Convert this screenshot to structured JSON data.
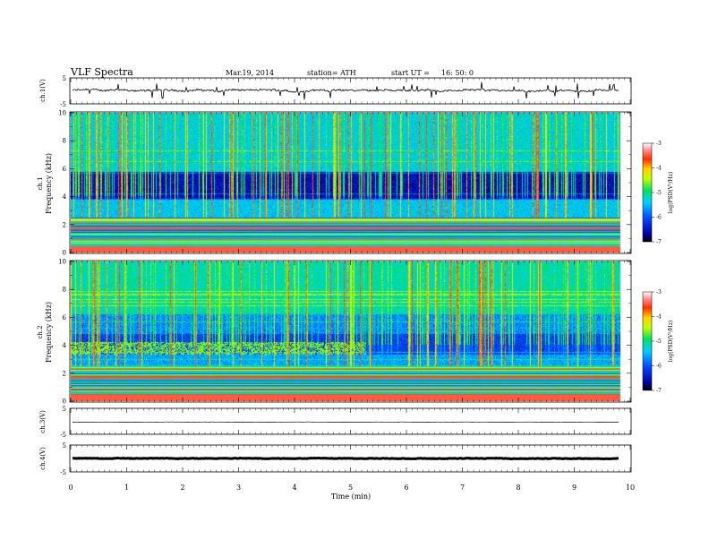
{
  "header": {
    "title": "VLF Spectra",
    "date": "Mar.19, 2014",
    "station": "station= ATH",
    "start": "start UT =",
    "start_time": "16: 50: 0"
  },
  "chart_data": [
    {
      "type": "line",
      "panel": "ch1-waveform",
      "ylabel": "ch.1(V)",
      "ylim": [
        -5,
        5
      ],
      "ytick_labels": [
        "5",
        "-5"
      ],
      "xlim": [
        0,
        10
      ],
      "series_level": 0.2,
      "series_amplitude": 0.6,
      "spikes": true,
      "data_end_min": 9.8
    },
    {
      "type": "heatmap",
      "panel": "ch1-spectrogram",
      "ylabel_top": "ch.1",
      "ylabel": "Frequency (kHz)",
      "ylim": [
        0,
        10
      ],
      "ytick_labels": [
        "0",
        "2",
        "4",
        "6",
        "8",
        "10"
      ],
      "xlim": [
        0,
        10
      ],
      "colorbar": {
        "label": "log(PSD(V²/Hz)",
        "range": [
          -7,
          -3
        ],
        "tick_labels": [
          "-3",
          "-4",
          "-5",
          "-6",
          "-7"
        ]
      }
    },
    {
      "type": "heatmap",
      "panel": "ch2-spectrogram",
      "ylabel_top": "ch.2",
      "ylabel": "Frequency (kHz)",
      "ylim": [
        0,
        10
      ],
      "ytick_labels": [
        "0",
        "2",
        "4",
        "6",
        "8",
        "10"
      ],
      "xlim": [
        0,
        10
      ],
      "colorbar": {
        "label": "log(PSD(V²/Hz)",
        "range": [
          -7,
          -3
        ],
        "tick_labels": [
          "-3",
          "-4",
          "-5",
          "-6",
          "-7"
        ]
      }
    },
    {
      "type": "line",
      "panel": "ch3-waveform",
      "ylabel": "ch.3(V)",
      "ylim": [
        -5,
        5
      ],
      "ytick_labels": [
        "5",
        "-5"
      ],
      "xlim": [
        0,
        10
      ],
      "series_level": -0.3,
      "series_amplitude": 0.05,
      "spikes": false,
      "data_end_min": 9.8
    },
    {
      "type": "line",
      "panel": "ch4-waveform",
      "ylabel": "ch.4(V)",
      "ylim": [
        -5,
        5
      ],
      "ytick_labels": [
        "5",
        "-5"
      ],
      "xlim": [
        0,
        10
      ],
      "series_level": 0.0,
      "series_amplitude": 0.15,
      "spikes": false,
      "thick": true,
      "data_end_min": 9.8
    }
  ],
  "xaxis": {
    "label": "Time (min)",
    "tick_labels": [
      "0",
      "1",
      "2",
      "3",
      "4",
      "5",
      "6",
      "7",
      "8",
      "9",
      "10"
    ],
    "range": [
      0,
      10
    ]
  }
}
